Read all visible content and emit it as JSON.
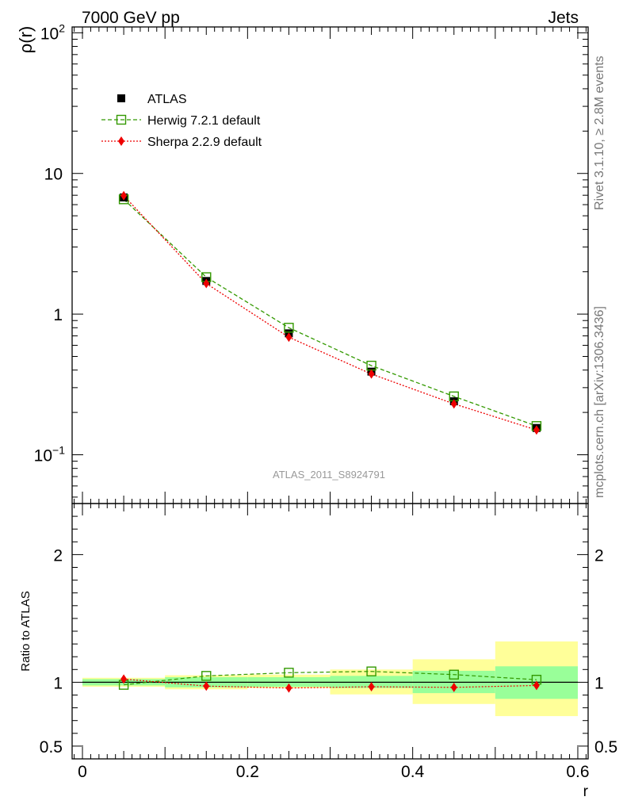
{
  "header": {
    "left": "7000 GeV pp",
    "right": "Jets"
  },
  "side_labels": {
    "rivet": "Rivet 3.1.10, ≥ 2.8M events",
    "mcplots": "mcplots.cern.ch [arXiv:1306.3436]"
  },
  "watermark": "ATLAS_2011_S8924791",
  "colors": {
    "atlas": "#000000",
    "herwig": "#339900",
    "sherpa": "#ee0000",
    "band_outer": "#ffff99",
    "band_inner": "#99ff99",
    "frame": "#000000",
    "watermark": "#999999"
  },
  "chart_data": [
    {
      "type": "line",
      "panel": "main",
      "xlabel": "",
      "ylabel": "ρ(r)",
      "ylabel_base": "ρ",
      "ylabel_paren_open": "(",
      "ylabel_var": "r",
      "ylabel_paren_close": ")",
      "yscale": "log",
      "xlim": [
        -0.0125,
        0.6125
      ],
      "ylim": [
        0.045,
        110
      ],
      "y_tick_labels": [
        {
          "value": 100,
          "base": "10",
          "exp": "2"
        },
        {
          "value": 10,
          "base": "10",
          "exp": ""
        },
        {
          "value": 1,
          "base": "1",
          "exp": ""
        },
        {
          "value": 0.1,
          "base": "10",
          "exp": "−1"
        }
      ],
      "x": [
        0.05,
        0.15,
        0.25,
        0.35,
        0.45,
        0.55
      ],
      "series": [
        {
          "name": "ATLAS",
          "marker": "filled-square",
          "values": [
            6.75,
            1.72,
            0.73,
            0.39,
            0.24,
            0.155
          ]
        },
        {
          "name": "Herwig 7.2.1 default",
          "marker": "open-square",
          "line": "dashed",
          "values": [
            6.55,
            1.83,
            0.8,
            0.43,
            0.26,
            0.16
          ]
        },
        {
          "name": "Sherpa 2.2.9 default",
          "marker": "diamond",
          "line": "dotted",
          "values": [
            6.95,
            1.65,
            0.685,
            0.375,
            0.23,
            0.15
          ]
        }
      ],
      "legend": "top-left"
    },
    {
      "type": "line",
      "panel": "ratio",
      "xlabel": "r",
      "ylabel": "Ratio to ATLAS",
      "xlim": [
        -0.0125,
        0.6125
      ],
      "ylim": [
        0.4,
        2.4
      ],
      "x_tick_labels": [
        {
          "value": 0,
          "label": "0"
        },
        {
          "value": 0.2,
          "label": "0.2"
        },
        {
          "value": 0.4,
          "label": "0.4"
        },
        {
          "value": 0.6,
          "label": "0.6"
        }
      ],
      "y_tick_labels": [
        {
          "value": 2,
          "label": "2"
        },
        {
          "value": 1,
          "label": "1"
        },
        {
          "value": 0.5,
          "label": "0.5"
        }
      ],
      "bins": [
        [
          0.0,
          0.1
        ],
        [
          0.1,
          0.2
        ],
        [
          0.2,
          0.3
        ],
        [
          0.3,
          0.4
        ],
        [
          0.4,
          0.5
        ],
        [
          0.5,
          0.6
        ]
      ],
      "band_outer": [
        [
          0.965,
          1.035
        ],
        [
          0.945,
          1.055
        ],
        [
          0.955,
          1.06
        ],
        [
          0.905,
          1.1
        ],
        [
          0.83,
          1.18
        ],
        [
          0.735,
          1.32
        ]
      ],
      "band_inner": [
        [
          0.975,
          1.025
        ],
        [
          0.96,
          1.04
        ],
        [
          0.965,
          1.04
        ],
        [
          0.955,
          1.05
        ],
        [
          0.915,
          1.09
        ],
        [
          0.87,
          1.125
        ]
      ],
      "x": [
        0.05,
        0.15,
        0.25,
        0.35,
        0.45,
        0.55
      ],
      "series": [
        {
          "name": "Herwig 7.2.1 default",
          "marker": "open-square",
          "line": "dashed",
          "values": [
            0.98,
            1.05,
            1.075,
            1.085,
            1.06,
            1.02
          ]
        },
        {
          "name": "Sherpa 2.2.9 default",
          "marker": "diamond",
          "line": "dotted",
          "values": [
            1.025,
            0.97,
            0.955,
            0.965,
            0.96,
            0.975
          ]
        }
      ]
    }
  ]
}
